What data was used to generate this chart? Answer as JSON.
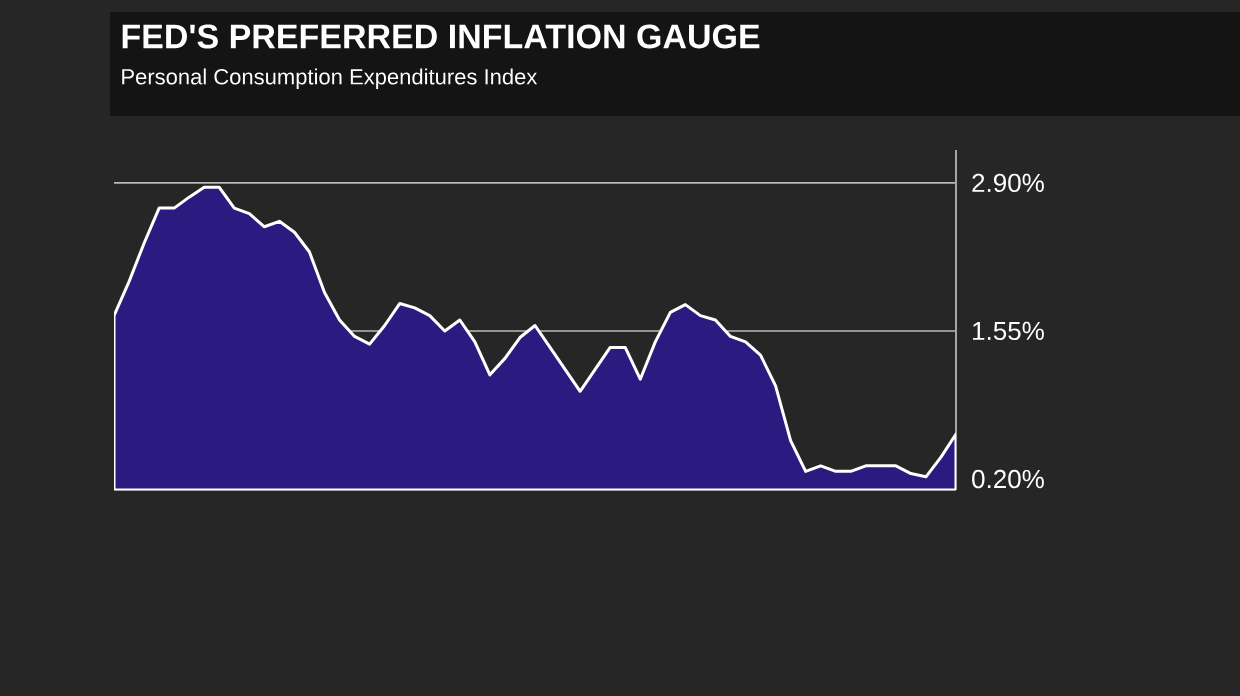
{
  "chart_data": {
    "type": "area",
    "title": "FED'S PREFERRED INFLATION GAUGE",
    "subtitle": "Personal Consumption Expenditures Index",
    "categories": [
      null,
      null,
      null,
      null,
      null,
      null,
      null,
      null,
      null,
      null,
      null,
      null,
      null,
      null,
      null,
      null,
      null,
      null,
      null,
      null,
      null,
      null,
      null,
      null,
      null,
      null,
      null,
      null,
      null,
      null,
      null,
      null,
      null,
      null,
      null,
      null,
      null,
      null,
      null,
      null,
      null,
      null,
      null,
      null,
      null,
      null,
      null,
      null,
      null,
      null,
      null,
      null,
      null,
      null,
      null,
      null,
      null
    ],
    "values": [
      1.69,
      2.0,
      2.35,
      2.67,
      2.67,
      2.77,
      2.86,
      2.86,
      2.67,
      2.62,
      2.5,
      2.55,
      2.45,
      2.27,
      1.9,
      1.65,
      1.5,
      1.43,
      1.6,
      1.8,
      1.76,
      1.69,
      1.55,
      1.65,
      1.45,
      1.15,
      1.3,
      1.49,
      1.6,
      1.4,
      1.2,
      1.0,
      1.2,
      1.4,
      1.4,
      1.11,
      1.45,
      1.72,
      1.79,
      1.69,
      1.65,
      1.5,
      1.45,
      1.33,
      1.05,
      0.55,
      0.27,
      0.32,
      0.27,
      0.27,
      0.32,
      0.32,
      0.32,
      0.25,
      0.22,
      0.4,
      0.61
    ],
    "color": "#2b1a80",
    "ylim": [
      0.1,
      3.2
    ],
    "yticks": [
      {
        "value": 0.2,
        "label": "0.20%"
      },
      {
        "value": 1.55,
        "label": "1.55%"
      },
      {
        "value": 2.9,
        "label": "2.90%"
      }
    ],
    "grid": "y"
  }
}
